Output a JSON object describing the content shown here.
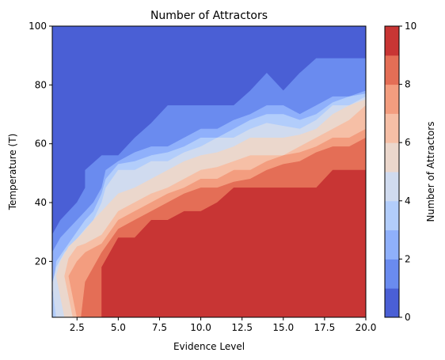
{
  "chart_data": {
    "type": "contourf",
    "title": "Number of Attractors",
    "xlabel": "Evidence Level",
    "ylabel": "Temperature (T)",
    "colorbar_label": "Number of Attractors",
    "xlim": [
      1,
      20
    ],
    "ylim": [
      1,
      100
    ],
    "x_ticks": [
      2.5,
      5.0,
      7.5,
      10.0,
      12.5,
      15.0,
      17.5,
      20.0
    ],
    "x_tick_labels": [
      "2.5",
      "5.0",
      "7.5",
      "10.0",
      "12.5",
      "15.0",
      "17.5",
      "20.0"
    ],
    "y_ticks": [
      20,
      40,
      60,
      80,
      100
    ],
    "y_tick_labels": [
      "20",
      "40",
      "60",
      "80",
      "100"
    ],
    "colorbar_ticks": [
      0,
      2,
      4,
      6,
      8,
      10
    ],
    "colorbar_tick_labels": [
      "0",
      "2",
      "4",
      "6",
      "8",
      "10"
    ],
    "levels": [
      0,
      1,
      2,
      3,
      4,
      5,
      6,
      7,
      8,
      9,
      10
    ],
    "colors": [
      "#4a5fd5",
      "#6a8bef",
      "#8fb0fb",
      "#b2cdfb",
      "#d0dbef",
      "#ebd7cc",
      "#f6bfa6",
      "#f39d7f",
      "#e46e56",
      "#c83534"
    ],
    "region_upper_bounds": [
      {
        "level_min": 9,
        "upper_T": [
          [
            4,
            1
          ],
          [
            4,
            18
          ],
          [
            5,
            28
          ],
          [
            6,
            28
          ],
          [
            7,
            34
          ],
          [
            8,
            34
          ],
          [
            9,
            37
          ],
          [
            10,
            37
          ],
          [
            11,
            40
          ],
          [
            12,
            45
          ],
          [
            13,
            45
          ],
          [
            14,
            45
          ],
          [
            15,
            45
          ],
          [
            16,
            45
          ],
          [
            17,
            45
          ],
          [
            18,
            51
          ],
          [
            19,
            51
          ],
          [
            20,
            51
          ]
        ]
      },
      {
        "level_min": 8,
        "upper_T": [
          [
            2.75,
            1
          ],
          [
            3,
            13
          ],
          [
            4,
            23
          ],
          [
            5,
            31
          ],
          [
            6,
            34
          ],
          [
            7,
            37
          ],
          [
            8,
            40
          ],
          [
            9,
            43
          ],
          [
            10,
            45
          ],
          [
            11,
            45
          ],
          [
            12,
            47
          ],
          [
            13,
            48
          ],
          [
            14,
            51
          ],
          [
            15,
            53
          ],
          [
            16,
            54
          ],
          [
            17,
            57
          ],
          [
            18,
            59
          ],
          [
            19,
            59
          ],
          [
            20,
            62
          ]
        ]
      },
      {
        "level_min": 7,
        "upper_T": [
          [
            2.5,
            1
          ],
          [
            2,
            15
          ],
          [
            2.5,
            20
          ],
          [
            3,
            23
          ],
          [
            4,
            26
          ],
          [
            5,
            34
          ],
          [
            6,
            37
          ],
          [
            7,
            40
          ],
          [
            8,
            43
          ],
          [
            9,
            45
          ],
          [
            10,
            48
          ],
          [
            11,
            48
          ],
          [
            12,
            51
          ],
          [
            13,
            51
          ],
          [
            14,
            54
          ],
          [
            15,
            56
          ],
          [
            16,
            57
          ],
          [
            17,
            59
          ],
          [
            18,
            62
          ],
          [
            19,
            62
          ],
          [
            20,
            65
          ]
        ]
      },
      {
        "level_min": 6,
        "upper_T": [
          [
            2.25,
            1
          ],
          [
            1.75,
            15
          ],
          [
            2,
            21
          ],
          [
            2.5,
            25
          ],
          [
            3,
            26
          ],
          [
            4,
            29
          ],
          [
            5,
            37
          ],
          [
            6,
            40
          ],
          [
            7,
            43
          ],
          [
            8,
            45
          ],
          [
            9,
            48
          ],
          [
            10,
            51
          ],
          [
            11,
            52
          ],
          [
            12,
            54
          ],
          [
            13,
            56
          ],
          [
            14,
            56
          ],
          [
            15,
            56
          ],
          [
            16,
            59
          ],
          [
            17,
            62
          ],
          [
            18,
            65
          ],
          [
            19,
            68
          ],
          [
            20,
            73
          ]
        ]
      },
      {
        "level_min": 5,
        "upper_T": [
          [
            1.75,
            1
          ],
          [
            1.25,
            15
          ],
          [
            1.5,
            20
          ],
          [
            2,
            25
          ],
          [
            2.75,
            29
          ],
          [
            3.5,
            34
          ],
          [
            4,
            37
          ],
          [
            5,
            43
          ],
          [
            6,
            45
          ],
          [
            7,
            48
          ],
          [
            8,
            51
          ],
          [
            9,
            54
          ],
          [
            10,
            56
          ],
          [
            11,
            57
          ],
          [
            12,
            59
          ],
          [
            13,
            62
          ],
          [
            14,
            62
          ],
          [
            15,
            62
          ],
          [
            16,
            63
          ],
          [
            17,
            65
          ],
          [
            18,
            70
          ],
          [
            19,
            73
          ],
          [
            20,
            75
          ]
        ]
      },
      {
        "level_min": 4,
        "upper_T": [
          [
            1.25,
            1
          ],
          [
            1,
            12
          ],
          [
            1.25,
            18
          ],
          [
            1.75,
            23
          ],
          [
            2.25,
            26
          ],
          [
            3,
            31
          ],
          [
            3.5,
            34
          ],
          [
            4,
            40
          ],
          [
            4.25,
            45
          ],
          [
            5,
            51
          ],
          [
            6,
            51
          ],
          [
            7,
            54
          ],
          [
            8,
            54
          ],
          [
            9,
            57
          ],
          [
            10,
            59
          ],
          [
            11,
            62
          ],
          [
            12,
            62
          ],
          [
            13,
            65
          ],
          [
            14,
            67
          ],
          [
            15,
            66
          ],
          [
            16,
            65
          ],
          [
            17,
            68
          ],
          [
            18,
            73
          ],
          [
            19,
            73
          ],
          [
            20,
            76
          ]
        ]
      },
      {
        "level_min": 3,
        "upper_T": [
          [
            1,
            6
          ],
          [
            1.25,
            20
          ],
          [
            2,
            26
          ],
          [
            3,
            34
          ],
          [
            3.5,
            37
          ],
          [
            4,
            43
          ],
          [
            4.25,
            48
          ],
          [
            5,
            53
          ],
          [
            6,
            54
          ],
          [
            7,
            56
          ],
          [
            8,
            57
          ],
          [
            9,
            59
          ],
          [
            10,
            62
          ],
          [
            11,
            62
          ],
          [
            12,
            65
          ],
          [
            13,
            68
          ],
          [
            14,
            70
          ],
          [
            15,
            70
          ],
          [
            16,
            68
          ],
          [
            17,
            70
          ],
          [
            18,
            74
          ],
          [
            19,
            76
          ],
          [
            20,
            77
          ]
        ]
      },
      {
        "level_min": 2,
        "upper_T": [
          [
            1,
            23
          ],
          [
            1.5,
            28
          ],
          [
            2,
            31
          ],
          [
            3,
            37
          ],
          [
            3.5,
            40
          ],
          [
            4,
            45
          ],
          [
            4.25,
            51
          ],
          [
            5,
            54
          ],
          [
            6,
            57
          ],
          [
            7,
            59
          ],
          [
            8,
            59
          ],
          [
            9,
            62
          ],
          [
            10,
            65
          ],
          [
            11,
            65
          ],
          [
            12,
            68
          ],
          [
            13,
            70
          ],
          [
            14,
            73
          ],
          [
            15,
            73
          ],
          [
            16,
            70
          ],
          [
            17,
            73
          ],
          [
            18,
            76
          ],
          [
            19,
            76
          ],
          [
            20,
            78
          ]
        ]
      },
      {
        "level_min": 1,
        "upper_T": [
          [
            1,
            29
          ],
          [
            1.5,
            34
          ],
          [
            2,
            37
          ],
          [
            2.5,
            40
          ],
          [
            3,
            45
          ],
          [
            3,
            51
          ],
          [
            4,
            56
          ],
          [
            5,
            56
          ],
          [
            6,
            62
          ],
          [
            7,
            67
          ],
          [
            8,
            73
          ],
          [
            9,
            73
          ],
          [
            10,
            73
          ],
          [
            11,
            73
          ],
          [
            12,
            73
          ],
          [
            13,
            78
          ],
          [
            14,
            84
          ],
          [
            15,
            78
          ],
          [
            16,
            84
          ],
          [
            17,
            89
          ],
          [
            18,
            89
          ],
          [
            19,
            89
          ],
          [
            20,
            89
          ]
        ]
      }
    ]
  }
}
